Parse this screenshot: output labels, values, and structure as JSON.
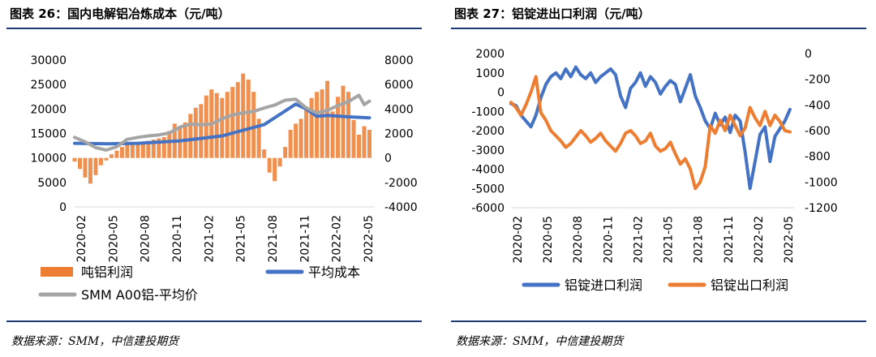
{
  "charts": [
    {
      "title": "图表 26：国内电解铝冶炼成本（元/吨）",
      "source": "数据来源：SMM，中信建投期货",
      "legend": [
        "吨铝利润",
        "平均成本",
        "SMM A00铝-平均价"
      ]
    },
    {
      "title": "图表 27：铝锭进出口利润（元/吨）",
      "source": "数据来源：SMM，中信建投期货",
      "legend": [
        "铝锭进口利润",
        "铝锭出口利润"
      ]
    }
  ],
  "chart_data": [
    {
      "type": "bar",
      "x_ticks": [
        "2020-02",
        "2020-05",
        "2020-08",
        "2020-11",
        "2021-02",
        "2021-05",
        "2021-08",
        "2021-11",
        "2022-02",
        "2022-05"
      ],
      "x_range": [
        0,
        28.5
      ],
      "y_left": {
        "ticks": [
          "0",
          "5000",
          "10000",
          "15000",
          "20000",
          "25000",
          "30000"
        ],
        "range": [
          0,
          30000
        ]
      },
      "y_right": {
        "ticks": [
          "-4000",
          "-2000",
          "0",
          "2000",
          "4000",
          "6000",
          "8000"
        ],
        "range": [
          -4000,
          8000
        ]
      },
      "colors": {
        "吨铝利润": "#ed7d31",
        "平均成本": "#4472c4",
        "SMM A00铝-平均价": "#a5a5a5"
      },
      "series": [
        {
          "name": "吨铝利润",
          "axis": "right",
          "render": "bar",
          "x": [
            0,
            0.5,
            1,
            1.5,
            2,
            2.5,
            3,
            3.5,
            4,
            4.5,
            5,
            5.5,
            6,
            6.5,
            7,
            7.5,
            8,
            8.5,
            9,
            9.5,
            10,
            10.5,
            11,
            11.5,
            12,
            12.5,
            13,
            13.5,
            14,
            14.5,
            15,
            15.5,
            16,
            16.5,
            17,
            17.5,
            18,
            18.5,
            19,
            19.5,
            20,
            20.5,
            21,
            21.5,
            22,
            22.5,
            23,
            23.5,
            24,
            24.5,
            25,
            25.5,
            26,
            26.5,
            27,
            27.5,
            28
          ],
          "values": [
            -300,
            -900,
            -1600,
            -2100,
            -1400,
            -600,
            -200,
            300,
            600,
            900,
            1100,
            1100,
            1200,
            1200,
            1400,
            1500,
            1600,
            1700,
            2200,
            2800,
            2500,
            2900,
            3600,
            4100,
            4400,
            5100,
            5600,
            5300,
            4900,
            5400,
            5800,
            6200,
            6900,
            6400,
            5400,
            3200,
            700,
            -1200,
            -1900,
            -700,
            900,
            2300,
            2800,
            3200,
            4200,
            4900,
            5400,
            5600,
            6300,
            3800,
            5000,
            5900,
            5400,
            3100,
            1900,
            2600,
            2300
          ]
        },
        {
          "name": "平均成本",
          "axis": "left",
          "render": "line",
          "x": [
            0,
            3,
            6,
            10,
            14,
            18,
            21,
            22,
            23,
            24,
            26,
            28
          ],
          "values": [
            13000,
            12900,
            13000,
            13500,
            14500,
            16800,
            21000,
            20000,
            18500,
            18700,
            18400,
            18200
          ]
        },
        {
          "name": "SMM A00铝-平均价",
          "axis": "left",
          "render": "line",
          "x": [
            0,
            1,
            2,
            3,
            4,
            5,
            6,
            7,
            8,
            9,
            10,
            11,
            12,
            13,
            14,
            15,
            16,
            17,
            18,
            19,
            20,
            21,
            22,
            23,
            24,
            25,
            26,
            27,
            27.5,
            28
          ],
          "values": [
            14200,
            13300,
            12100,
            11600,
            12300,
            13800,
            14200,
            14500,
            14700,
            15100,
            16300,
            16900,
            16800,
            16900,
            18000,
            18800,
            19200,
            19500,
            20200,
            20800,
            21800,
            22000,
            20200,
            19200,
            19700,
            20700,
            21500,
            22800,
            20900,
            21600
          ]
        }
      ]
    },
    {
      "type": "line",
      "x_ticks": [
        "2020-02",
        "2020-05",
        "2020-08",
        "2020-11",
        "2021-02",
        "2021-05",
        "2021-08",
        "2021-11",
        "2022-02",
        "2022-05"
      ],
      "x_range": [
        0,
        28.5
      ],
      "y_left": {
        "ticks": [
          "-6000",
          "-5000",
          "-4000",
          "-3000",
          "-2000",
          "-1000",
          "0",
          "1000",
          "2000"
        ],
        "range": [
          -6000,
          2000
        ]
      },
      "y_right": {
        "ticks": [
          "-1200",
          "-1000",
          "-800",
          "-600",
          "-400",
          "-200",
          "0"
        ],
        "range": [
          -1200,
          0
        ]
      },
      "colors": {
        "铝锭进口利润": "#4472c4",
        "铝锭出口利润": "#ed7d31"
      },
      "series": [
        {
          "name": "铝锭进口利润",
          "axis": "left",
          "render": "line",
          "x": [
            0,
            0.5,
            1,
            1.5,
            2,
            2.5,
            3,
            3.5,
            4,
            4.5,
            5,
            5.5,
            6,
            6.5,
            7,
            7.5,
            8,
            8.5,
            9,
            9.5,
            10,
            10.5,
            11,
            11.5,
            12,
            12.5,
            13,
            13.5,
            14,
            14.5,
            15,
            15.5,
            16,
            16.5,
            17,
            17.5,
            18,
            18.5,
            19,
            19.5,
            20,
            20.5,
            21,
            21.5,
            22,
            22.5,
            23,
            23.5,
            24,
            24.5,
            25,
            25.5,
            26,
            26.5,
            27,
            27.5,
            28
          ],
          "values": [
            -600,
            -700,
            -1200,
            -1500,
            -1800,
            -1200,
            -300,
            400,
            800,
            1000,
            700,
            1200,
            800,
            1300,
            900,
            700,
            1000,
            500,
            800,
            1000,
            1200,
            900,
            -200,
            -800,
            200,
            500,
            1000,
            300,
            800,
            500,
            -100,
            300,
            600,
            400,
            -500,
            200,
            900,
            -200,
            -800,
            -1500,
            -1900,
            -1100,
            -1700,
            -1300,
            -2100,
            -1200,
            -1500,
            -3100,
            -5000,
            -3600,
            -2200,
            -1800,
            -3600,
            -2300,
            -1900,
            -1500,
            -900
          ]
        },
        {
          "name": "铝锭出口利润",
          "axis": "right",
          "render": "line",
          "x": [
            0,
            0.5,
            1,
            1.5,
            2,
            2.5,
            3,
            3.5,
            4,
            4.5,
            5,
            5.5,
            6,
            6.5,
            7,
            7.5,
            8,
            8.5,
            9,
            9.5,
            10,
            10.5,
            11,
            11.5,
            12,
            12.5,
            13,
            13.5,
            14,
            14.5,
            15,
            15.5,
            16,
            16.5,
            17,
            17.5,
            18,
            18.5,
            19,
            19.5,
            20,
            20.5,
            21,
            21.5,
            22,
            22.5,
            23,
            23.5,
            24,
            24.5,
            25,
            25.5,
            26,
            26.5,
            27,
            27.5,
            28
          ],
          "values": [
            -380,
            -420,
            -480,
            -400,
            -300,
            -180,
            -460,
            -520,
            -600,
            -640,
            -680,
            -730,
            -700,
            -650,
            -600,
            -640,
            -690,
            -660,
            -620,
            -680,
            -720,
            -760,
            -700,
            -620,
            -600,
            -640,
            -700,
            -680,
            -620,
            -720,
            -760,
            -740,
            -690,
            -780,
            -860,
            -820,
            -900,
            -1050,
            -1000,
            -880,
            -560,
            -620,
            -520,
            -600,
            -480,
            -560,
            -640,
            -580,
            -420,
            -500,
            -560,
            -450,
            -560,
            -480,
            -530,
            -600,
            -610
          ]
        }
      ]
    }
  ]
}
